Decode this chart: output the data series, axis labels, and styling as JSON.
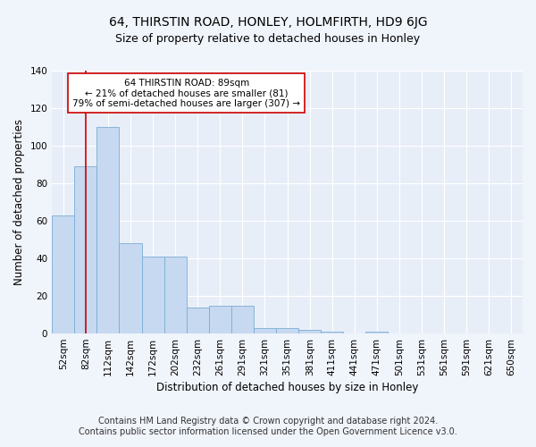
{
  "title": "64, THIRSTIN ROAD, HONLEY, HOLMFIRTH, HD9 6JG",
  "subtitle": "Size of property relative to detached houses in Honley",
  "xlabel": "Distribution of detached houses by size in Honley",
  "ylabel": "Number of detached properties",
  "footer_line1": "Contains HM Land Registry data © Crown copyright and database right 2024.",
  "footer_line2": "Contains public sector information licensed under the Open Government Licence v3.0.",
  "bar_labels": [
    "52sqm",
    "82sqm",
    "112sqm",
    "142sqm",
    "172sqm",
    "202sqm",
    "232sqm",
    "261sqm",
    "291sqm",
    "321sqm",
    "351sqm",
    "381sqm",
    "411sqm",
    "441sqm",
    "471sqm",
    "501sqm",
    "531sqm",
    "561sqm",
    "591sqm",
    "621sqm",
    "650sqm"
  ],
  "bar_values": [
    63,
    89,
    110,
    48,
    41,
    41,
    14,
    15,
    15,
    3,
    3,
    2,
    1,
    0,
    1,
    0,
    0,
    0,
    0,
    0,
    0
  ],
  "bar_color": "#c6d9f0",
  "bar_edge_color": "#7aadd4",
  "vline_x": 1,
  "vline_color": "#cc0000",
  "annotation_text": "64 THIRSTIN ROAD: 89sqm\n← 21% of detached houses are smaller (81)\n79% of semi-detached houses are larger (307) →",
  "annotation_box_color": "#ffffff",
  "annotation_box_edge_color": "#cc0000",
  "ylim": [
    0,
    140
  ],
  "yticks": [
    0,
    20,
    40,
    60,
    80,
    100,
    120,
    140
  ],
  "background_color": "#f0f4fb",
  "plot_bg_color": "#e8eef8",
  "title_fontsize": 10,
  "subtitle_fontsize": 9,
  "axis_label_fontsize": 8.5,
  "tick_fontsize": 7.5,
  "footer_fontsize": 7
}
